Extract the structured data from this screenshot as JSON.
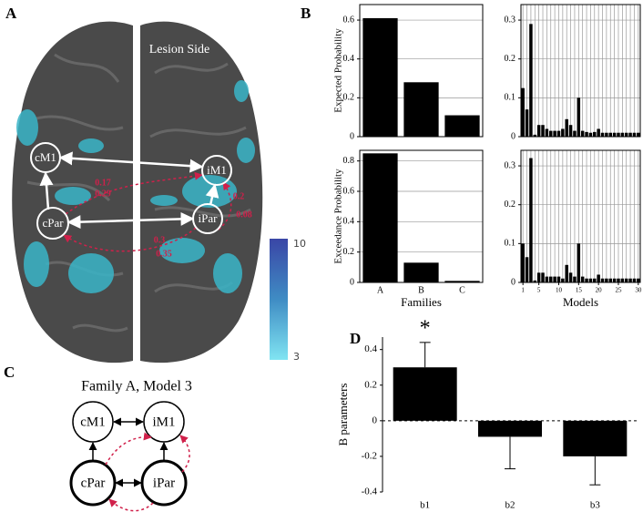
{
  "panel_labels": [
    "A",
    "B",
    "C",
    "D"
  ],
  "brain": {
    "lesion_label": "Lesion Side",
    "nodes": [
      "cM1",
      "iM1",
      "cPar",
      "iPar"
    ],
    "edge_labels": [
      "0.17",
      "0.29",
      "0.2",
      "0.08",
      "0.3",
      "0.35"
    ],
    "colorbar": {
      "ticks": [
        10,
        3
      ]
    }
  },
  "diagram": {
    "title": "Family A, Model 3",
    "nodes": [
      "cM1",
      "iM1",
      "cPar",
      "iPar"
    ]
  },
  "chart_data": [
    {
      "type": "bar",
      "categories": [
        null,
        null,
        null
      ],
      "values": [
        0.61,
        0.28,
        0.11
      ],
      "color": "#000000",
      "ylim": [
        0,
        0.68
      ],
      "yticks": [
        0,
        0.2,
        0.4,
        0.6
      ],
      "grid": true,
      "ylabel": "Expected Probability"
    },
    {
      "type": "bar",
      "x": [
        1,
        2,
        3,
        4,
        5,
        6,
        7,
        8,
        9,
        10,
        11,
        12,
        13,
        14,
        15,
        16,
        17,
        18,
        19,
        20,
        21,
        22,
        23,
        24,
        25,
        26,
        27,
        28,
        29,
        30
      ],
      "values": [
        0.125,
        0.07,
        0.29,
        0.005,
        0.03,
        0.03,
        0.02,
        0.015,
        0.015,
        0.015,
        0.02,
        0.045,
        0.03,
        0.015,
        0.1,
        0.015,
        0.012,
        0.01,
        0.012,
        0.02,
        0.01,
        0.01,
        0.01,
        0.01,
        0.01,
        0.01,
        0.01,
        0.01,
        0.01,
        0.01
      ],
      "color": "#000000",
      "xlim": [
        0.5,
        30.5
      ],
      "ylim": [
        0,
        0.34
      ],
      "yticks": [
        0,
        0.1,
        0.2,
        0.3
      ],
      "grid": true,
      "xgrid": true
    },
    {
      "type": "bar",
      "categories": [
        "A",
        "B",
        "C"
      ],
      "values": [
        0.85,
        0.13,
        0.01
      ],
      "color": "#000000",
      "ylim": [
        0,
        0.87
      ],
      "yticks": [
        0,
        0.2,
        0.4,
        0.6,
        0.8
      ],
      "grid": true,
      "ylabel": "Exceedance Probability",
      "xlabel": "Families"
    },
    {
      "type": "bar",
      "x": [
        1,
        2,
        3,
        4,
        5,
        6,
        7,
        8,
        9,
        10,
        11,
        12,
        13,
        14,
        15,
        16,
        17,
        18,
        19,
        20,
        21,
        22,
        23,
        24,
        25,
        26,
        27,
        28,
        29,
        30
      ],
      "values": [
        0.1,
        0.065,
        0.32,
        0.005,
        0.025,
        0.025,
        0.015,
        0.015,
        0.015,
        0.015,
        0.01,
        0.045,
        0.025,
        0.015,
        0.1,
        0.015,
        0.01,
        0.01,
        0.01,
        0.02,
        0.01,
        0.01,
        0.01,
        0.01,
        0.01,
        0.01,
        0.01,
        0.01,
        0.01,
        0.01
      ],
      "color": "#000000",
      "xlim": [
        0.5,
        30.5
      ],
      "ylim": [
        0,
        0.34
      ],
      "yticks": [
        0,
        0.1,
        0.2,
        0.3
      ],
      "xticks": [
        1,
        5,
        10,
        15,
        20,
        25,
        30
      ],
      "grid": true,
      "xgrid": true,
      "xlabel": "Models"
    },
    {
      "type": "bar",
      "categories": [
        "b1",
        "b2",
        "b3"
      ],
      "values": [
        0.3,
        -0.09,
        -0.2
      ],
      "errors": [
        0.14,
        0.18,
        0.16
      ],
      "color": "#000000",
      "ylim": [
        -0.4,
        0.47
      ],
      "yticks": [
        -0.4,
        -0.2,
        0,
        0.2,
        0.4
      ],
      "grid": false,
      "zero_line": true,
      "ylabel": "B parameters",
      "annotation": "*"
    }
  ]
}
